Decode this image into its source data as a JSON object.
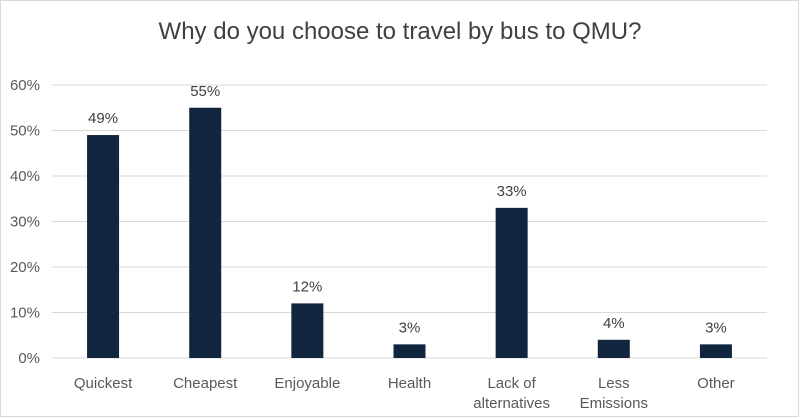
{
  "chart_data": {
    "type": "bar",
    "title": "Why do you choose to travel by bus to QMU?",
    "categories": [
      [
        "Quickest"
      ],
      [
        "Cheapest"
      ],
      [
        "Enjoyable"
      ],
      [
        "Health"
      ],
      [
        "Lack of",
        "alternatives"
      ],
      [
        "Less",
        "Emissions"
      ],
      [
        "Other"
      ]
    ],
    "values": [
      49,
      55,
      12,
      3,
      33,
      4,
      3
    ],
    "data_labels": [
      "49%",
      "55%",
      "12%",
      "3%",
      "33%",
      "4%",
      "3%"
    ],
    "ylim": [
      0,
      60
    ],
    "yticks": [
      0,
      10,
      20,
      30,
      40,
      50,
      60
    ],
    "ytick_labels": [
      "0%",
      "10%",
      "20%",
      "30%",
      "40%",
      "50%",
      "60%"
    ],
    "grid": true,
    "legend": "none",
    "bar_color": "#12253f"
  }
}
